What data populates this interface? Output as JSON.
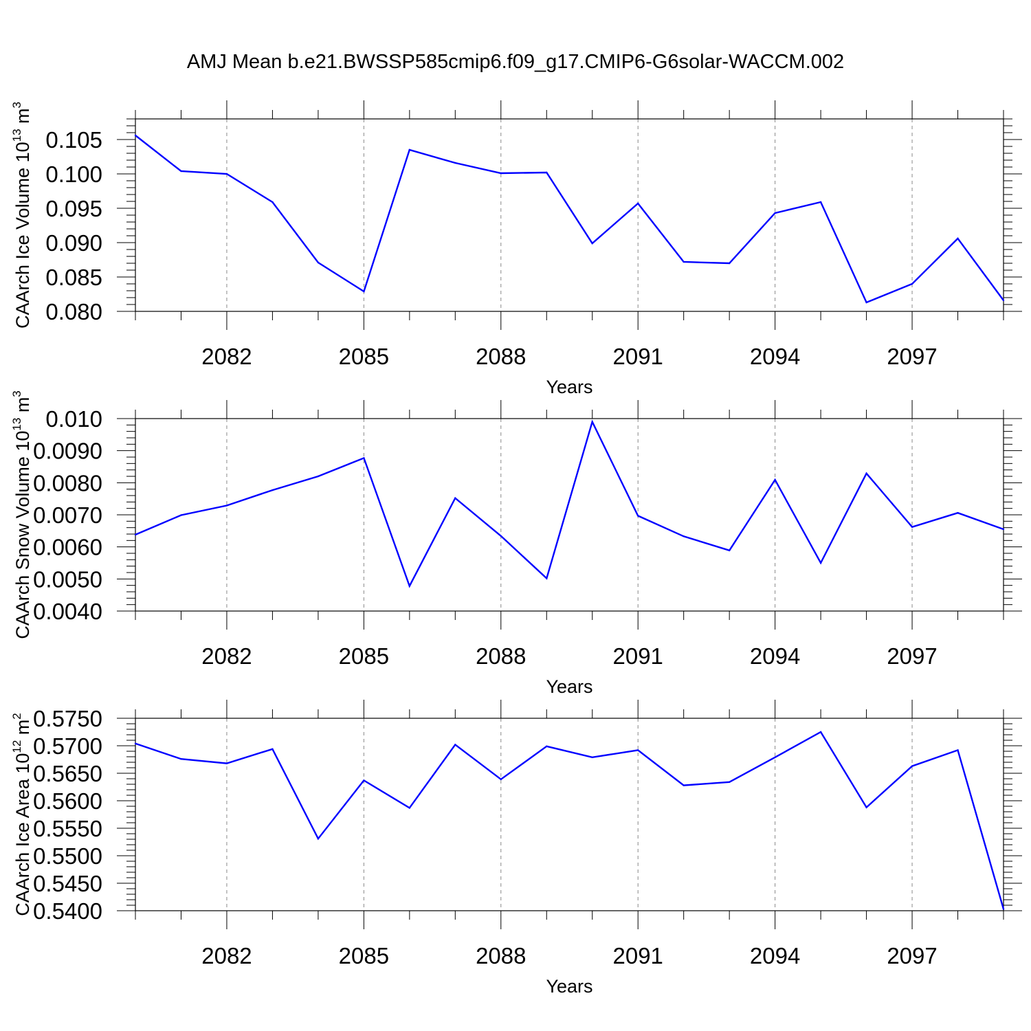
{
  "title": "AMJ Mean b.e21.BWSSP585cmip6.f09_g17.CMIP6-G6solar-WACCM.002",
  "colors": {
    "line": "#0000ff",
    "axis": "#000000",
    "grid": "#888888"
  },
  "chart_data": [
    {
      "type": "line",
      "xlabel": "Years",
      "ylabel_main": "CAArch Ice Volume 10",
      "ylabel_exp": "13",
      "ylabel_unit": " m",
      "ylabel_unit_exp": "3",
      "xlim": [
        2080,
        2099
      ],
      "x_ticks": [
        2082,
        2085,
        2088,
        2091,
        2094,
        2097
      ],
      "x_tick_labels": [
        "2082",
        "2085",
        "2088",
        "2091",
        "2094",
        "2097"
      ],
      "ylim": [
        0.08,
        0.108
      ],
      "y_ticks": [
        0.08,
        0.085,
        0.09,
        0.095,
        0.1,
        0.105
      ],
      "y_tick_labels": [
        "0.080",
        "0.085",
        "0.090",
        "0.095",
        "0.100",
        "0.105"
      ],
      "y_minor_step": 0.001,
      "grid": "vertical dashed at major x ticks",
      "series": [
        {
          "name": "CAArch Ice Volume",
          "x": [
            2080,
            2081,
            2082,
            2083,
            2084,
            2085,
            2086,
            2087,
            2088,
            2089,
            2090,
            2091,
            2092,
            2093,
            2094,
            2095,
            2096,
            2097,
            2098,
            2099
          ],
          "values": [
            0.1056,
            0.1004,
            0.1,
            0.0959,
            0.0871,
            0.0829,
            0.1035,
            0.1016,
            0.1001,
            0.1002,
            0.0899,
            0.0957,
            0.0872,
            0.087,
            0.0943,
            0.0959,
            0.0813,
            0.084,
            0.0906,
            0.0816
          ]
        }
      ]
    },
    {
      "type": "line",
      "xlabel": "Years",
      "ylabel_main": "CAArch Snow Volume 10",
      "ylabel_exp": "13",
      "ylabel_unit": " m",
      "ylabel_unit_exp": "3",
      "xlim": [
        2080,
        2099
      ],
      "x_ticks": [
        2082,
        2085,
        2088,
        2091,
        2094,
        2097
      ],
      "x_tick_labels": [
        "2082",
        "2085",
        "2088",
        "2091",
        "2094",
        "2097"
      ],
      "ylim": [
        0.004,
        0.01
      ],
      "y_ticks": [
        0.004,
        0.005,
        0.006,
        0.007,
        0.008,
        0.009,
        0.01
      ],
      "y_tick_labels": [
        "0.0040",
        "0.0050",
        "0.0060",
        "0.0070",
        "0.0080",
        "0.0090",
        "0.010"
      ],
      "y_minor_step": 0.0002,
      "grid": "vertical dashed at major x ticks",
      "series": [
        {
          "name": "CAArch Snow Volume",
          "x": [
            2080,
            2081,
            2082,
            2083,
            2084,
            2085,
            2086,
            2087,
            2088,
            2089,
            2090,
            2091,
            2092,
            2093,
            2094,
            2095,
            2096,
            2097,
            2098,
            2099
          ],
          "values": [
            0.00638,
            0.00699,
            0.00729,
            0.00777,
            0.0082,
            0.00877,
            0.00478,
            0.00752,
            0.00634,
            0.00502,
            0.0099,
            0.00697,
            0.00633,
            0.00589,
            0.00809,
            0.0055,
            0.00829,
            0.00662,
            0.00706,
            0.00655
          ]
        }
      ]
    },
    {
      "type": "line",
      "xlabel": "Years",
      "ylabel_main": "CAArch Ice Area 10",
      "ylabel_exp": "12",
      "ylabel_unit": " m",
      "ylabel_unit_exp": "2",
      "xlim": [
        2080,
        2099
      ],
      "x_ticks": [
        2082,
        2085,
        2088,
        2091,
        2094,
        2097
      ],
      "x_tick_labels": [
        "2082",
        "2085",
        "2088",
        "2091",
        "2094",
        "2097"
      ],
      "ylim": [
        0.54,
        0.575
      ],
      "y_ticks": [
        0.54,
        0.545,
        0.55,
        0.555,
        0.56,
        0.565,
        0.57,
        0.575
      ],
      "y_tick_labels": [
        "0.5400",
        "0.5450",
        "0.5500",
        "0.5550",
        "0.5600",
        "0.5650",
        "0.5700",
        "0.5750"
      ],
      "y_minor_step": 0.001,
      "grid": "vertical dashed at major x ticks",
      "series": [
        {
          "name": "CAArch Ice Area",
          "x": [
            2080,
            2081,
            2082,
            2083,
            2084,
            2085,
            2086,
            2087,
            2088,
            2089,
            2090,
            2091,
            2092,
            2093,
            2094,
            2095,
            2096,
            2097,
            2098,
            2099
          ],
          "values": [
            0.5704,
            0.5676,
            0.5668,
            0.5694,
            0.5531,
            0.5637,
            0.5587,
            0.5702,
            0.5639,
            0.5699,
            0.5679,
            0.5692,
            0.5628,
            0.5634,
            0.5679,
            0.5725,
            0.5588,
            0.5663,
            0.5692,
            0.5403
          ]
        }
      ]
    }
  ]
}
